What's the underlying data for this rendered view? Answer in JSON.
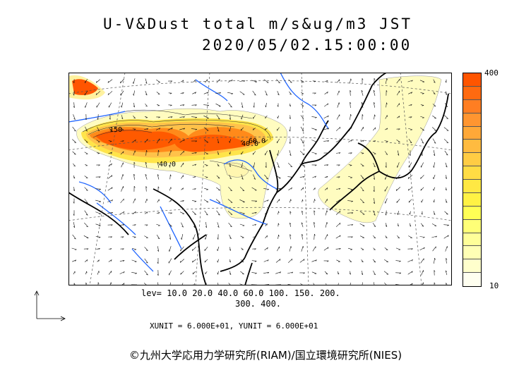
{
  "header": {
    "title": "U-V&Dust total m/s&ug/m3 JST",
    "datetime": "2020/05/02.15:00:00"
  },
  "legend": {
    "max_label": "400",
    "min_label": "10",
    "colors": [
      "#ff5500",
      "#ff6a10",
      "#ff7e22",
      "#ff9530",
      "#ffa838",
      "#ffbb40",
      "#ffcc44",
      "#ffdc44",
      "#ffe844",
      "#fff244",
      "#ffff55",
      "#ffff77",
      "#ffff99",
      "#ffffb5",
      "#ffffcc",
      "#fffff0"
    ]
  },
  "levels": {
    "line1": "lev= 10.0 20.0 40.0 60.0 100. 150. 200.",
    "line2": "300. 400."
  },
  "units": {
    "text": "XUNIT = 6.000E+01, YUNIT = 6.000E+01"
  },
  "contour_labels": [
    "150",
    "40.0",
    "40.0",
    "60.0"
  ],
  "colors": {
    "coast": "#000000",
    "river": "#1e64ff",
    "dust_high": "#ff5500",
    "dust_mid": "#ffcc33",
    "dust_low": "#fffcc0"
  },
  "credit": "©九州大学応用力学研究所(RIAM)/国立環境研究所(NIES)"
}
